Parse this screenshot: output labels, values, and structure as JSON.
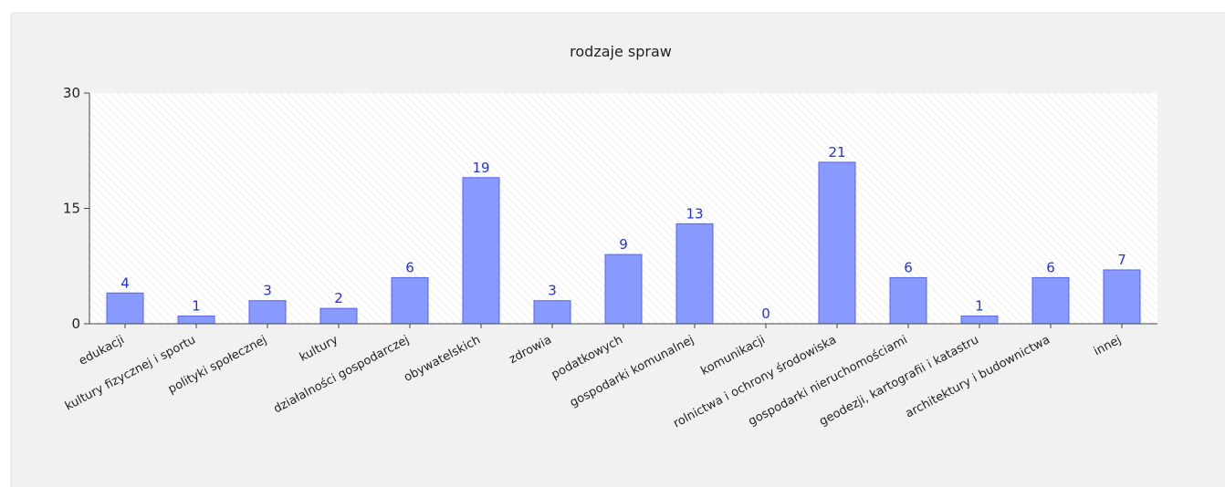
{
  "chart_data": {
    "type": "bar",
    "title": "rodzaje spraw",
    "categories": [
      "edukacji",
      "kultury fizycznej i sportu",
      "polityki społecznej",
      "kultury",
      "działalności gospodarczej",
      "obywatelskich",
      "zdrowia",
      "podatkowych",
      "gospodarki komunalnej",
      "komunikacji",
      "rolnictwa i ochrony środowiska",
      "gospodarki nieruchomościami",
      "geodezji, kartografii i katastru",
      "architektury i budownictwa",
      "innej"
    ],
    "values": [
      4,
      1,
      3,
      2,
      6,
      19,
      3,
      9,
      13,
      0,
      21,
      6,
      1,
      6,
      7
    ],
    "color": "#8899ff",
    "ylim": [
      0,
      30
    ],
    "yticks": [
      0,
      15,
      30
    ]
  }
}
